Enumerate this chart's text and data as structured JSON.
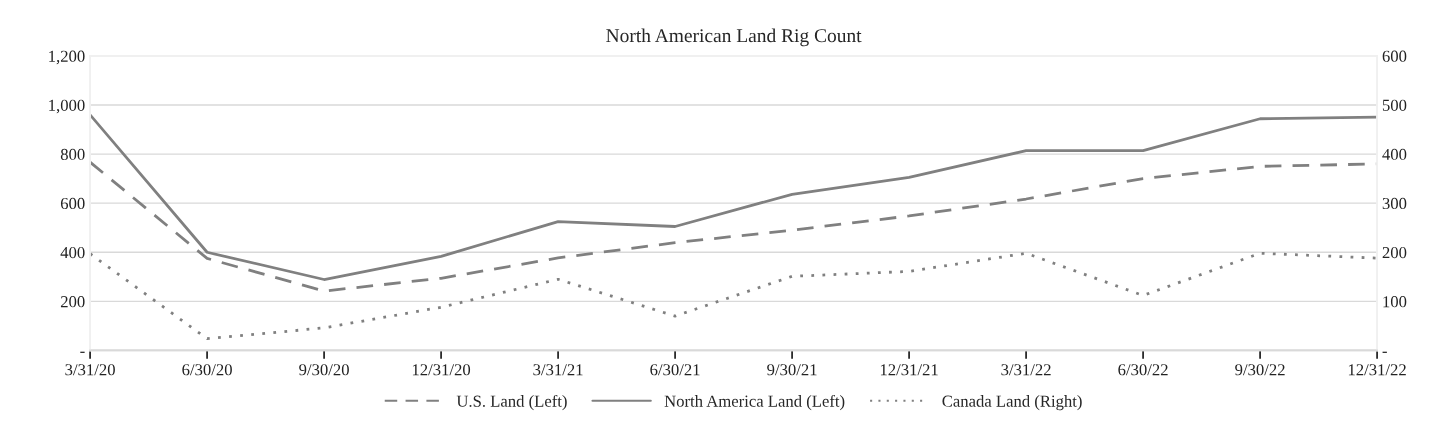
{
  "chart_data": {
    "type": "line",
    "title": "North American Land Rig Count",
    "categories": [
      "3/31/20",
      "6/30/20",
      "9/30/20",
      "12/31/20",
      "3/31/21",
      "6/30/21",
      "9/30/21",
      "12/31/21",
      "3/31/22",
      "6/30/22",
      "9/30/22",
      "12/31/22"
    ],
    "series": [
      {
        "name": "U.S. Land (Left)",
        "color": "#808080",
        "line_style": "dashed",
        "values": [
          767,
          375,
          242,
          294,
          377,
          439,
          490,
          548,
          617,
          700,
          750,
          760
        ]
      },
      {
        "name": "North America Land (Left)",
        "color": "#808080",
        "line_style": "solid",
        "values": [
          960,
          400,
          289,
          383,
          525,
          505,
          636,
          705,
          814,
          814,
          944,
          951
        ]
      },
      {
        "name": "Canada Land (Right)",
        "color": "#808080",
        "line_style": "dotted",
        "axis": "y2",
        "values": [
          197,
          24,
          46,
          88,
          145,
          70,
          151,
          161,
          198,
          112,
          198,
          188
        ]
      }
    ],
    "ylim": [
      0,
      1200
    ],
    "yticks": [
      {
        "value": 0,
        "label": "-"
      },
      {
        "value": 200,
        "label": "200"
      },
      {
        "value": 400,
        "label": "400"
      },
      {
        "value": 600,
        "label": "600"
      },
      {
        "value": 800,
        "label": "800"
      },
      {
        "value": 1000,
        "label": "1,000"
      },
      {
        "value": 1200,
        "label": "1,200"
      }
    ],
    "y2lim": [
      0,
      600
    ],
    "y2ticks": [
      {
        "value": 0,
        "label": "-"
      },
      100,
      200,
      300,
      400,
      500,
      600
    ],
    "grid": "y",
    "legend": "bottom",
    "marker": "none"
  }
}
